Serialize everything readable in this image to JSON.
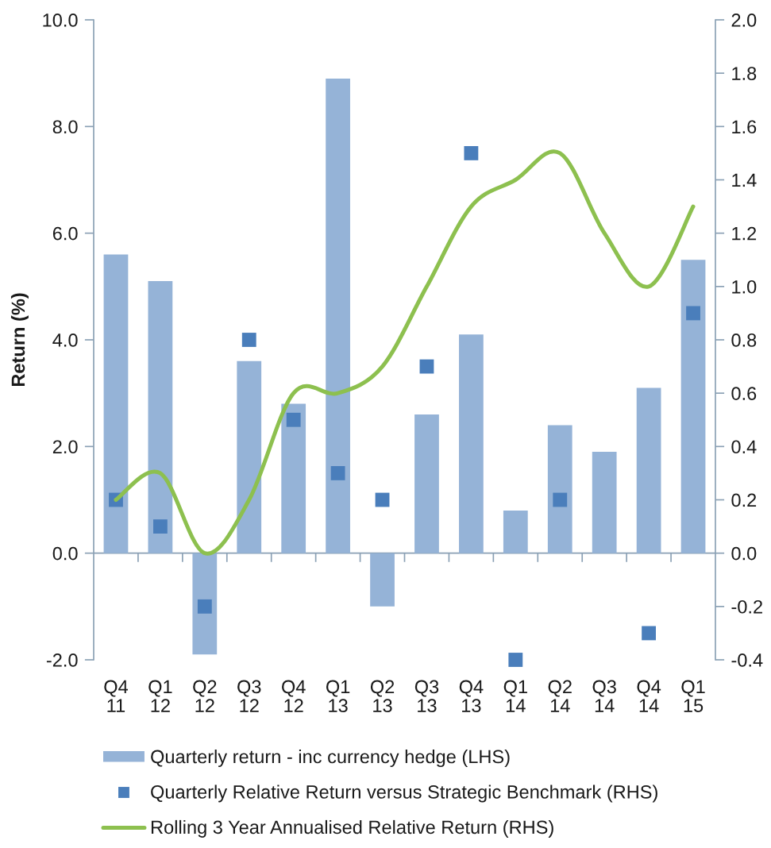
{
  "chart_data": {
    "type": "bar",
    "ylabel": "Return (%)",
    "categories": [
      "Q4\n11",
      "Q1\n12",
      "Q2\n12",
      "Q3\n12",
      "Q4\n12",
      "Q1\n13",
      "Q2\n13",
      "Q3\n13",
      "Q4\n13",
      "Q1\n14",
      "Q2\n14",
      "Q3\n14",
      "Q4\n14",
      "Q1\n15"
    ],
    "series": [
      {
        "name": "Quarterly return - inc currency hedge (LHS)",
        "color": "#95b3d7",
        "values": [
          5.6,
          5.1,
          -1.9,
          3.6,
          2.8,
          8.9,
          -1.0,
          2.6,
          4.1,
          0.8,
          2.4,
          1.9,
          3.1,
          5.5
        ]
      },
      {
        "type": "scatter",
        "axis": "y2",
        "marker": "square",
        "name": "Quarterly Relative Return versus Strategic Benchmark (RHS)",
        "color": "#4a7ebb",
        "values": [
          0.2,
          0.1,
          -0.2,
          0.8,
          0.5,
          0.3,
          0.2,
          0.7,
          1.5,
          -0.4,
          0.2,
          null,
          -0.3,
          0.9
        ]
      },
      {
        "type": "line",
        "axis": "y2",
        "name": "Rolling 3 Year Annualised Relative Return (RHS)",
        "color": "#8dc04f",
        "values": [
          0.2,
          0.3,
          0.0,
          0.2,
          0.6,
          0.6,
          0.7,
          1.0,
          1.3,
          1.4,
          1.5,
          1.2,
          1.0,
          1.3
        ]
      }
    ],
    "ylim": [
      -2,
      10
    ],
    "yticks": [
      {
        "value": -2,
        "label": "-2.0"
      },
      {
        "value": 0,
        "label": "0.0"
      },
      {
        "value": 2,
        "label": "2.0"
      },
      {
        "value": 4,
        "label": "4.0"
      },
      {
        "value": 6,
        "label": "6.0"
      },
      {
        "value": 8,
        "label": "8.0"
      },
      {
        "value": 10,
        "label": "10.0"
      }
    ],
    "y2lim": [
      -0.4,
      2.0
    ],
    "y2ticks": [
      {
        "value": -0.4,
        "label": "-0.4"
      },
      {
        "value": -0.2,
        "label": "-0.2"
      },
      {
        "value": 0,
        "label": "0.0"
      },
      {
        "value": 0.2,
        "label": "0.2"
      },
      {
        "value": 0.4,
        "label": "0.4"
      },
      {
        "value": 0.6,
        "label": "0.6"
      },
      {
        "value": 0.8,
        "label": "0.8"
      },
      {
        "value": 1.0,
        "label": "1.0"
      },
      {
        "value": 1.2,
        "label": "1.2"
      },
      {
        "value": 1.4,
        "label": "1.4"
      },
      {
        "value": 1.6,
        "label": "1.6"
      },
      {
        "value": 1.8,
        "label": "1.8"
      },
      {
        "value": 2.0,
        "label": "2.0"
      }
    ],
    "ref_lines": [
      {
        "axis": "y",
        "value": 0,
        "color": "#8aa0b4"
      }
    ],
    "legend": "bottom"
  }
}
